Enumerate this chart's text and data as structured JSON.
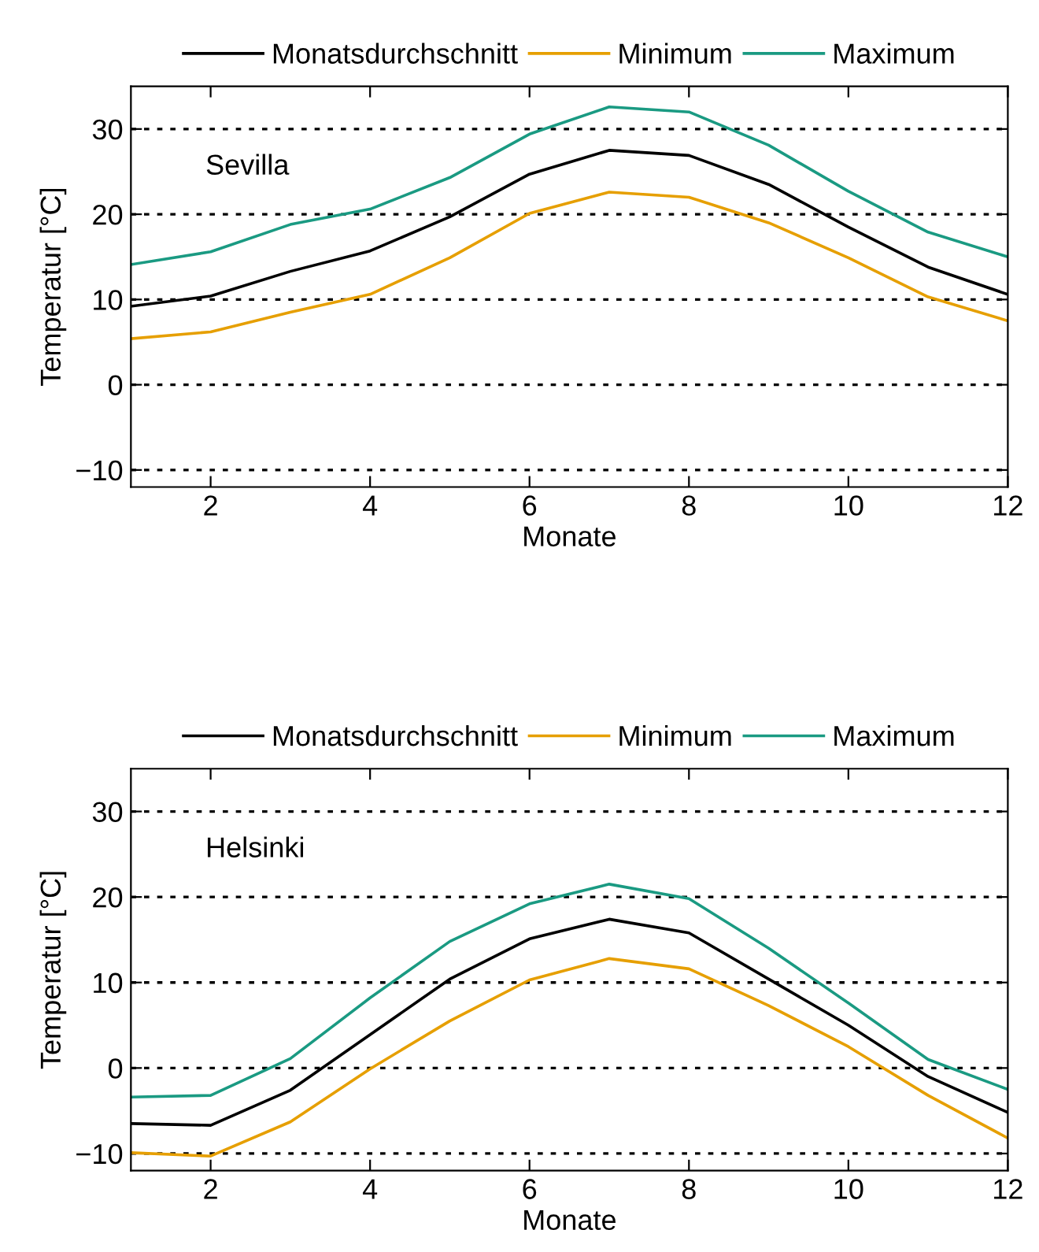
{
  "chart_data": [
    {
      "type": "line",
      "x": [
        1,
        2,
        3,
        4,
        5,
        6,
        7,
        8,
        9,
        10,
        11,
        12
      ],
      "xlabel": "Monate",
      "ylabel": "Temperatur [°C]",
      "annotations": [
        "Sevilla"
      ],
      "xlim": [
        1,
        12
      ],
      "xticks": [
        2,
        4,
        6,
        8,
        10,
        12
      ],
      "ylim": [
        -12,
        35
      ],
      "yticks": [
        {
          "value": -10,
          "label": "−10"
        },
        0,
        10,
        20,
        30
      ],
      "grid": "y",
      "legend": "top",
      "series": [
        {
          "name": "Monatsdurchschnitt",
          "color": "#000000",
          "values": [
            9.2,
            10.4,
            13.3,
            15.7,
            19.7,
            24.7,
            27.5,
            26.9,
            23.5,
            18.5,
            13.8,
            10.6
          ]
        },
        {
          "name": "Minimum",
          "color": "#e69f00",
          "values": [
            5.4,
            6.2,
            8.5,
            10.6,
            14.9,
            20.1,
            22.6,
            22.0,
            19.0,
            14.9,
            10.3,
            7.5
          ]
        },
        {
          "name": "Maximum",
          "color": "#1a9a82",
          "values": [
            14.1,
            15.6,
            18.8,
            20.6,
            24.3,
            29.4,
            32.6,
            32.0,
            28.1,
            22.7,
            17.9,
            15.0
          ]
        }
      ]
    },
    {
      "type": "line",
      "x": [
        1,
        2,
        3,
        4,
        5,
        6,
        7,
        8,
        9,
        10,
        11,
        12
      ],
      "xlabel": "Monate",
      "ylabel": "Temperatur [°C]",
      "annotations": [
        "Helsinki"
      ],
      "xlim": [
        1,
        12
      ],
      "xticks": [
        2,
        4,
        6,
        8,
        10,
        12
      ],
      "ylim": [
        -12,
        35
      ],
      "yticks": [
        {
          "value": -10,
          "label": "−10"
        },
        0,
        10,
        20,
        30
      ],
      "grid": "y",
      "legend": "top",
      "series": [
        {
          "name": "Monatsdurchschnitt",
          "color": "#000000",
          "values": [
            -6.5,
            -6.7,
            -2.6,
            3.9,
            10.4,
            15.1,
            17.4,
            15.8,
            10.4,
            5.0,
            -1.0,
            -5.2
          ]
        },
        {
          "name": "Minimum",
          "color": "#e69f00",
          "values": [
            -9.9,
            -10.3,
            -6.3,
            -0.1,
            5.5,
            10.3,
            12.8,
            11.6,
            7.3,
            2.5,
            -3.2,
            -8.2
          ]
        },
        {
          "name": "Maximum",
          "color": "#1a9a82",
          "values": [
            -3.4,
            -3.2,
            1.1,
            8.2,
            14.8,
            19.2,
            21.5,
            19.8,
            14.0,
            7.6,
            1.0,
            -2.5
          ]
        }
      ]
    }
  ]
}
